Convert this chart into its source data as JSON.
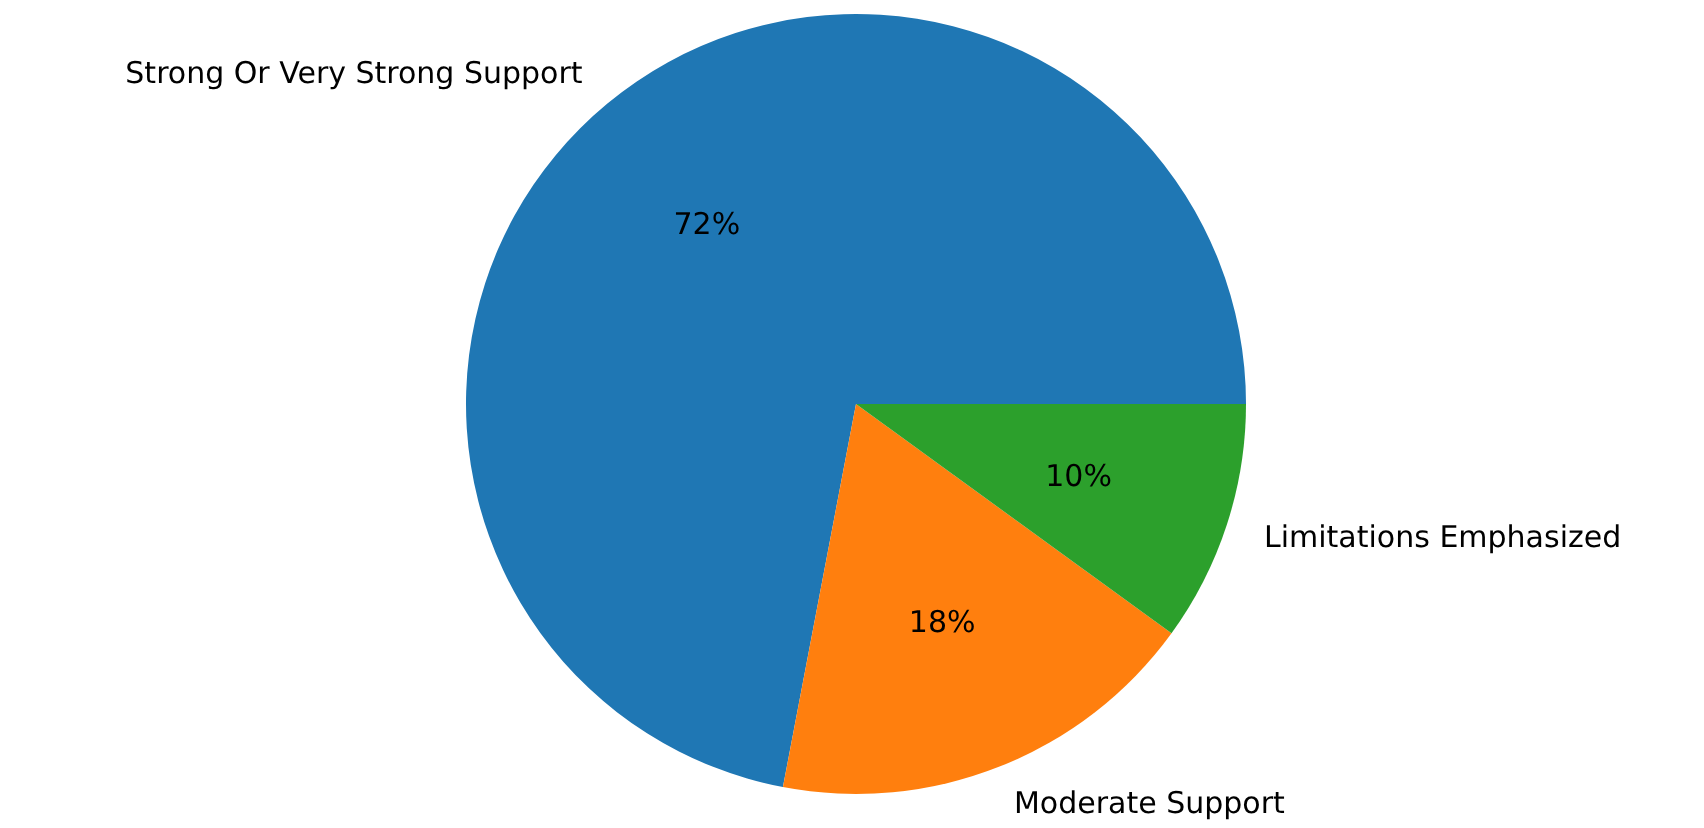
{
  "chart_data": {
    "type": "pie",
    "categories": [
      "Strong Or Very Strong Support",
      "Moderate Support",
      "Limitations Emphasized"
    ],
    "values": [
      72,
      18,
      10
    ],
    "colors": [
      "#1f77b4",
      "#ff7f0e",
      "#2ca02c"
    ],
    "value_labels": [
      "72%",
      "18%",
      "10%"
    ],
    "legend": false
  }
}
